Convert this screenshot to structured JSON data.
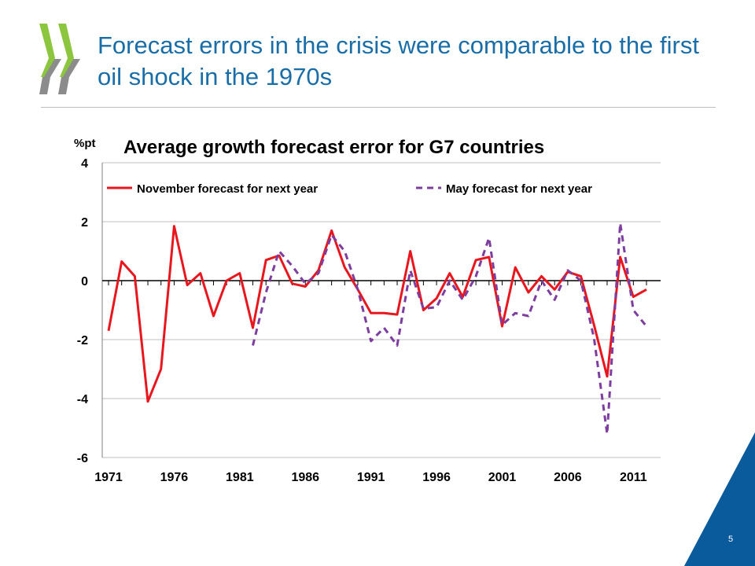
{
  "slide": {
    "title": "Forecast errors in the crisis were comparable to the first oil shock in the 1970s",
    "page_number": "5"
  },
  "colors": {
    "title": "#1a6ea8",
    "logo": "#8cc63f",
    "logo_shadow": "#8c8c8c",
    "corner": "#0a5b9c",
    "series_november": "#e8161d",
    "series_may": "#7d3ea0"
  },
  "icons": {
    "logo": "double-chevron-logo-icon"
  },
  "chart_data": {
    "type": "line",
    "title": "Average growth forecast error for G7 countries",
    "ylabel": "%pt",
    "xlabel": "",
    "ylim": [
      -6,
      4
    ],
    "xlim": [
      1971,
      2012
    ],
    "yticks": [
      "4",
      "2",
      "0",
      "-2",
      "-4",
      "-6"
    ],
    "xticks": [
      "1971",
      "1976",
      "1981",
      "1986",
      "1991",
      "1996",
      "2001",
      "2006",
      "2011"
    ],
    "grid": "horizontal",
    "legend_position": "top",
    "x": [
      1971,
      1972,
      1973,
      1974,
      1975,
      1976,
      1977,
      1978,
      1979,
      1980,
      1981,
      1982,
      1983,
      1984,
      1985,
      1986,
      1987,
      1988,
      1989,
      1990,
      1991,
      1992,
      1993,
      1994,
      1995,
      1996,
      1997,
      1998,
      1999,
      2000,
      2001,
      2002,
      2003,
      2004,
      2005,
      2006,
      2007,
      2008,
      2009,
      2010,
      2011,
      2012
    ],
    "series": [
      {
        "name": "November forecast for next year",
        "style": "solid",
        "values": [
          -1.7,
          0.65,
          0.15,
          -4.1,
          -3.0,
          1.85,
          -0.15,
          0.25,
          -1.2,
          0.0,
          0.25,
          -1.6,
          0.7,
          0.85,
          -0.1,
          -0.2,
          0.35,
          1.7,
          0.45,
          -0.3,
          -1.1,
          -1.1,
          -1.15,
          1.0,
          -1.0,
          -0.6,
          0.25,
          -0.55,
          0.7,
          0.8,
          -1.55,
          0.45,
          -0.4,
          0.15,
          -0.3,
          0.3,
          0.15,
          -1.5,
          -3.25,
          0.8,
          -0.55,
          -0.3
        ]
      },
      {
        "name": "May forecast for next year",
        "style": "dashed",
        "values": [
          null,
          null,
          null,
          null,
          null,
          null,
          null,
          null,
          null,
          null,
          null,
          -2.2,
          -0.4,
          1.0,
          0.5,
          -0.1,
          0.25,
          1.55,
          1.0,
          -0.3,
          -2.05,
          -1.6,
          -2.2,
          0.35,
          -0.95,
          -0.9,
          0.0,
          -0.65,
          0.15,
          1.45,
          -1.5,
          -1.1,
          -1.2,
          0.0,
          -0.65,
          0.35,
          0.0,
          -1.95,
          -5.2,
          1.95,
          -1.0,
          -1.55
        ]
      }
    ]
  }
}
